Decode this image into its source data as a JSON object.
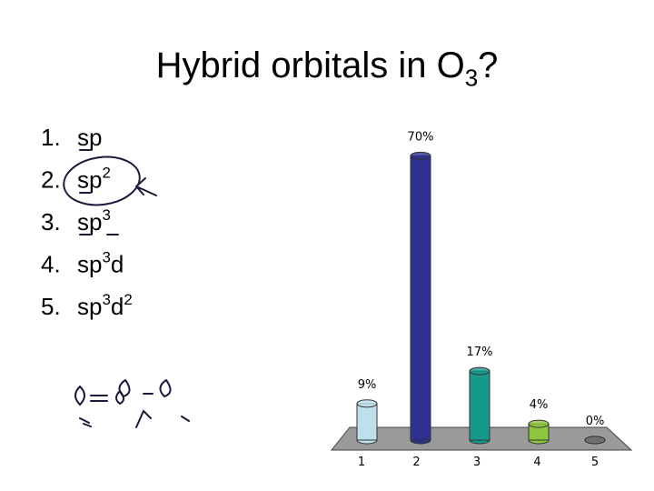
{
  "title": [
    {
      "text": "Hybrid orbitals in O"
    },
    {
      "sub": "3"
    },
    {
      "text": "?"
    }
  ],
  "markers": [
    "1.",
    "2.",
    "3.",
    "4.",
    "5."
  ],
  "options": [
    [
      {
        "text": "sp"
      }
    ],
    [
      {
        "text": "sp"
      },
      {
        "sup": "2"
      }
    ],
    [
      {
        "text": "sp"
      },
      {
        "sup": "3"
      }
    ],
    [
      {
        "text": "sp"
      },
      {
        "sup": "3"
      },
      {
        "text": "d"
      }
    ],
    [
      {
        "text": "sp"
      },
      {
        "sup": "3"
      },
      {
        "text": "d"
      },
      {
        "sup": "2"
      }
    ]
  ],
  "chart_data": {
    "type": "bar",
    "categories": [
      "1",
      "2",
      "3",
      "4",
      "5"
    ],
    "values": [
      9,
      70,
      17,
      4,
      0
    ],
    "value_labels": [
      "9%",
      "70%",
      "17%",
      "4%",
      "0%"
    ],
    "colors": [
      "#bfe0ea",
      "#2e3192",
      "#17998a",
      "#8cc63f",
      "#707070"
    ],
    "ylim": [
      0,
      75
    ]
  }
}
